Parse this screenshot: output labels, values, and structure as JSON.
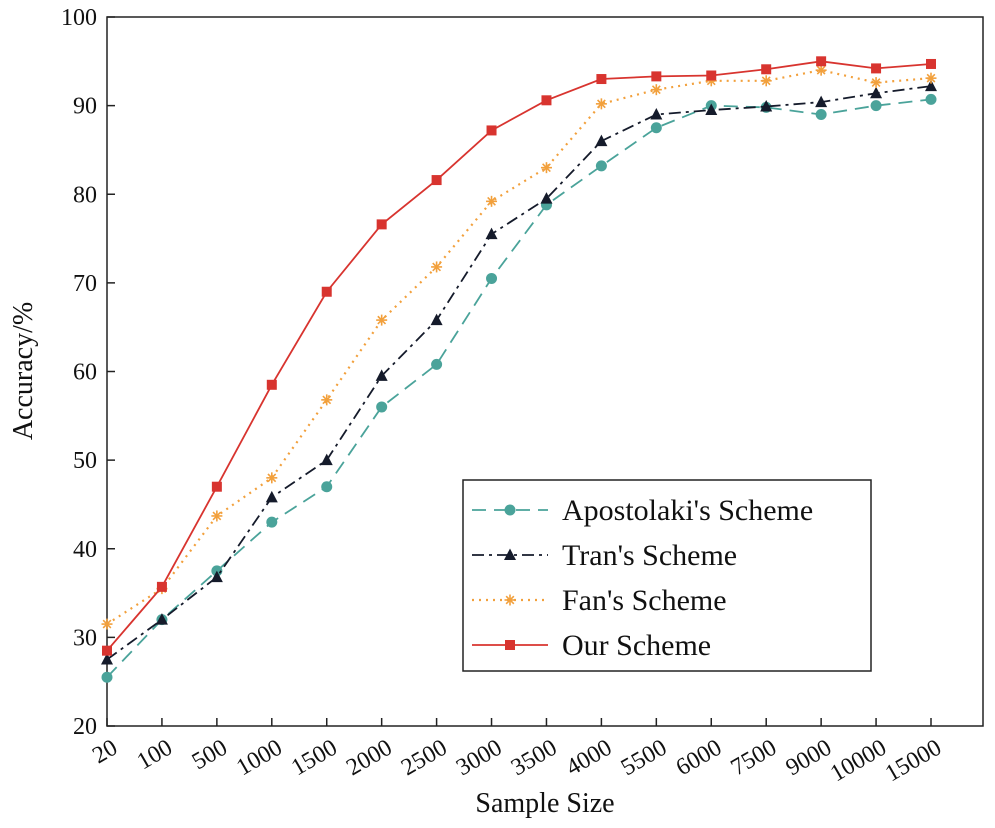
{
  "chart_data": {
    "type": "line",
    "xlabel": "Sample Size",
    "ylabel": "Accuracy/%",
    "categories": [
      "20",
      "100",
      "500",
      "1000",
      "1500",
      "2000",
      "2500",
      "3000",
      "3500",
      "4000",
      "5500",
      "6000",
      "7500",
      "9000",
      "10000",
      "15000"
    ],
    "ylim": [
      20,
      100
    ],
    "yticks": [
      "20",
      "30",
      "40",
      "50",
      "60",
      "70",
      "80",
      "90",
      "100"
    ],
    "grid": false,
    "legend_position": "bottom-right",
    "series": [
      {
        "name": "Apostolaki's Scheme",
        "color": "#4aa39a",
        "dash": "dashed",
        "marker": "circle",
        "values": [
          25.5,
          32.0,
          37.5,
          43.0,
          47.0,
          56.0,
          60.8,
          70.5,
          78.8,
          83.2,
          87.5,
          90.0,
          89.8,
          89.0,
          90.0,
          90.7
        ]
      },
      {
        "name": "Tran's Scheme",
        "color": "#151b2b",
        "dash": "dashdot",
        "marker": "triangle",
        "values": [
          27.5,
          32.0,
          36.8,
          45.8,
          50.0,
          59.5,
          65.8,
          75.5,
          79.5,
          86.0,
          89.0,
          89.5,
          89.9,
          90.4,
          91.4,
          92.2
        ]
      },
      {
        "name": "Fan's Scheme",
        "color": "#f2a03c",
        "dash": "dotted",
        "marker": "star",
        "values": [
          31.5,
          35.5,
          43.7,
          48.0,
          56.8,
          65.8,
          71.8,
          79.2,
          83.0,
          90.2,
          91.8,
          92.8,
          92.8,
          94.0,
          92.6,
          93.1
        ]
      },
      {
        "name": "Our Scheme",
        "color": "#d8342f",
        "dash": "solid",
        "marker": "square",
        "values": [
          28.5,
          35.7,
          47.0,
          58.5,
          69.0,
          76.6,
          81.6,
          87.2,
          90.6,
          93.0,
          93.3,
          93.4,
          94.1,
          95.0,
          94.2,
          94.7
        ]
      }
    ]
  }
}
